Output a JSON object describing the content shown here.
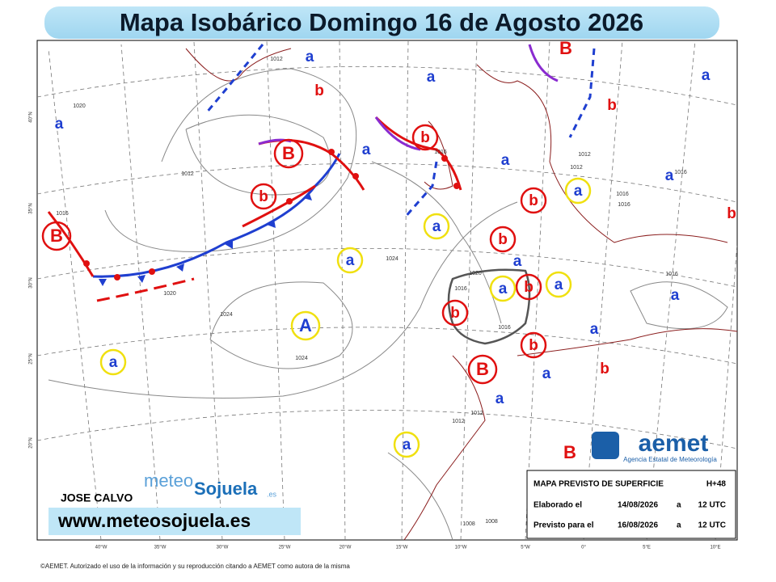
{
  "header": {
    "title": "Mapa Isobárico Domingo 16 de Agosto 2026"
  },
  "map": {
    "longitude_labels": [
      "40°W",
      "35°W",
      "30°W",
      "25°W",
      "20°W",
      "15°W",
      "10°W",
      "5°W",
      "0°",
      "5°E",
      "10°E"
    ],
    "latitude_labels": [
      "40°N",
      "35°N",
      "30°N",
      "25°N",
      "20°N"
    ],
    "pressure_centers": [
      "B",
      "b",
      "B",
      "b",
      "b",
      "b",
      "b",
      "b",
      "b",
      "B",
      "b",
      "B",
      "b",
      "b",
      "B",
      "b",
      "a",
      "a",
      "a",
      "a",
      "a",
      "a",
      "a",
      "a",
      "a",
      "a",
      "a",
      "a",
      "a",
      "a",
      "a",
      "a",
      "a",
      "a",
      "a",
      "A"
    ],
    "isobar_labels": [
      "1012",
      "1012",
      "1012",
      "1012",
      "1012",
      "1012",
      "1016",
      "1016",
      "1016",
      "1016",
      "1016",
      "1016",
      "1016",
      "1016",
      "1020",
      "1020",
      "1020",
      "1024",
      "1024",
      "1024",
      "1008",
      "1008"
    ]
  },
  "info_box": {
    "title": "MAPA PREVISTO DE SUPERFICIE",
    "lead_time": "H+48",
    "rows": [
      [
        "Elaborado el",
        "14/08/2026",
        "a",
        "12 UTC"
      ],
      [
        "Previsto para el",
        "16/08/2026",
        "a",
        "12 UTC"
      ]
    ]
  },
  "branding": {
    "author": "JOSE CALVO",
    "website": "www.meteosojuela.es",
    "logo_meteo": "meteo",
    "logo_sojuela": "Sojuela",
    "logo_es": ".es",
    "aemet_name": "aemet",
    "aemet_full": "Agencia Estatal de Meteorología"
  },
  "footer": "©AEMET. Autorizado el uso de la información y su reproducción citando a AEMET como autora de la misma"
}
